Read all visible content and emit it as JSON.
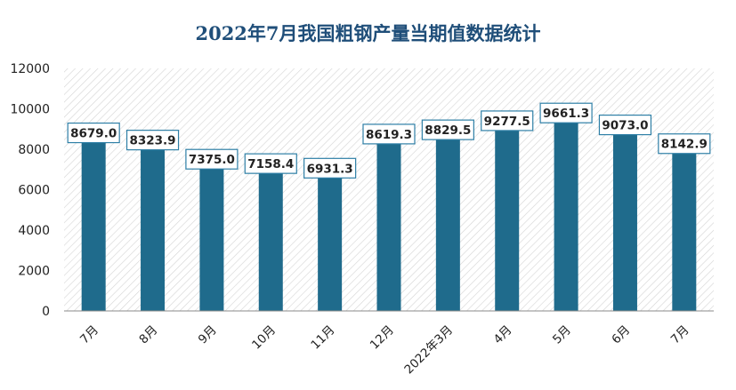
{
  "chart_data": {
    "type": "bar",
    "title": "2022年7月我国粗钢产量当期值数据统计",
    "categories": [
      "7月",
      "8月",
      "9月",
      "10月",
      "11月",
      "12月",
      "2022年3月",
      "4月",
      "5月",
      "6月",
      "7月"
    ],
    "values": [
      8679.0,
      8323.9,
      7375.0,
      7158.4,
      6931.3,
      8619.3,
      8829.5,
      9277.5,
      9661.3,
      9073.0,
      8142.9
    ],
    "value_labels": [
      "8679.0",
      "8323.9",
      "7375.0",
      "7158.4",
      "6931.3",
      "8619.3",
      "8829.5",
      "9277.5",
      "9661.3",
      "9073.0",
      "8142.9"
    ],
    "ylim": [
      0,
      12000
    ],
    "yticks": [
      "0",
      "2000",
      "4000",
      "6000",
      "8000",
      "10000",
      "12000"
    ],
    "grid": false,
    "background": "hatched",
    "colors": {
      "bar": "#1f6b8c",
      "title": "#1f4e79",
      "label_border": "#2e7fa6"
    }
  }
}
